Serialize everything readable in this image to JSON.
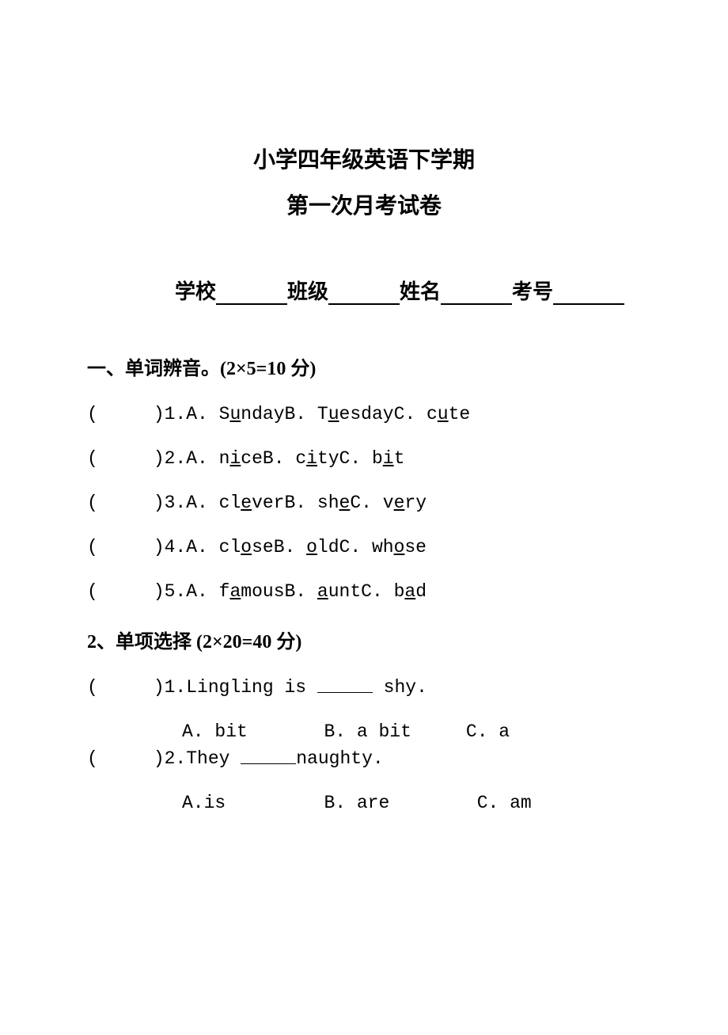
{
  "title_line1": "小学四年级英语下学期",
  "title_line2": "第一次月考试卷",
  "info": {
    "school": "学校",
    "class": "班级",
    "name": "姓名",
    "exam_no": "考号"
  },
  "section1": {
    "title": "一、单词辨音。(2×5=10 分)",
    "questions": [
      {
        "num": "1.",
        "a_pre": "S",
        "a_u": "u",
        "a_post": "nday",
        "b_pre": "T",
        "b_u": "u",
        "b_post": "esday",
        "c_pre": "c",
        "c_u": "u",
        "c_post": "te"
      },
      {
        "num": "2.",
        "a_pre": "n",
        "a_u": "i",
        "a_post": "ce",
        "b_pre": "c",
        "b_u": "i",
        "b_post": "ty",
        "c_pre": "b",
        "c_u": "i",
        "c_post": "t"
      },
      {
        "num": "3.",
        "a_pre": "cl",
        "a_u": "e",
        "a_post": "ver",
        "b_pre": "sh",
        "b_u": "e",
        "b_post": "",
        "c_pre": "v",
        "c_u": "e",
        "c_post": "ry"
      },
      {
        "num": "4.",
        "a_pre": "cl",
        "a_u": "o",
        "a_post": "se",
        "b_pre": "",
        "b_u": "o",
        "b_post": "ld",
        "c_pre": "wh",
        "c_u": "o",
        "c_post": "se"
      },
      {
        "num": "5.",
        "a_pre": "f",
        "a_u": "a",
        "a_post": "mous",
        "b_pre": "",
        "b_u": "a",
        "b_post": "unt",
        "c_pre": "b",
        "c_u": "a",
        "c_post": "d"
      }
    ]
  },
  "section2": {
    "title": "2、单项选择 (2×20=40 分)",
    "q1": {
      "num": "1.",
      "stem_pre": "Lingling is ",
      "stem_post": " shy.",
      "opt_a": "A. bit",
      "opt_b": "B. a bit",
      "opt_c": "C. a"
    },
    "q2": {
      "num": "2.",
      "stem_pre": "They ",
      "stem_post": "naughty.",
      "opt_a": "A.is",
      "opt_b": "B. are",
      "opt_c": "C. am"
    }
  },
  "labels": {
    "l_paren": "(",
    "r_paren": ")",
    "optA": "A.",
    "optB": "B.",
    "optC": "C."
  }
}
